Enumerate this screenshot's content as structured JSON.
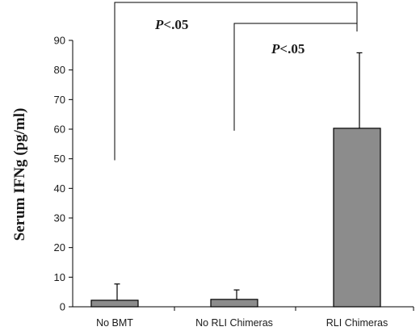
{
  "chart_data": {
    "type": "bar",
    "ylabel": "Serum IFNg (pg/ml)",
    "xlabel": "",
    "title": "",
    "ylim": [
      0,
      90
    ],
    "yticks": [
      0,
      10,
      20,
      30,
      40,
      50,
      60,
      70,
      80,
      90
    ],
    "categories": [
      "No BMT",
      "No RLI Chimeras",
      "RLI Chimeras"
    ],
    "values": [
      2.2,
      2.5,
      60.3
    ],
    "error": [
      5.5,
      3.2,
      25.5
    ],
    "bar_color": "#8c8c8c",
    "grid": false,
    "significance": [
      {
        "label": "P<.05",
        "from": "No BMT",
        "to": "RLI Chimeras"
      },
      {
        "label": "P<.05",
        "from": "No RLI Chimeras",
        "to": "RLI Chimeras"
      }
    ]
  }
}
